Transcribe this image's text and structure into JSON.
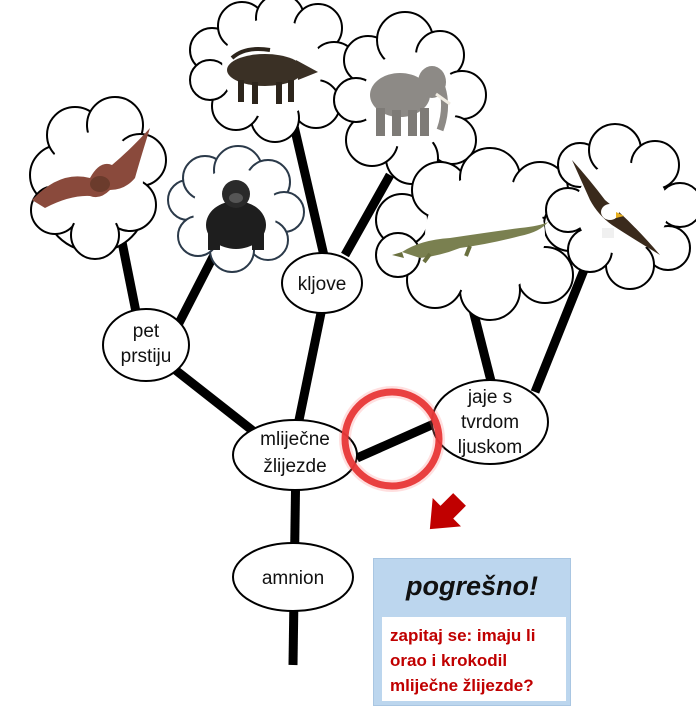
{
  "nodes": {
    "amnion": "amnion",
    "mammary_line1": "mliječne",
    "mammary_line2": "žlijezde",
    "five_fingers_line1": "pet",
    "five_fingers_line2": "prstiju",
    "tusks": "kljove",
    "hard_egg_line1": "jaje s",
    "hard_egg_line2": "tvrdom",
    "hard_egg_line3": "ljuskom"
  },
  "animals": [
    "bat-icon",
    "gorilla-icon",
    "boar-icon",
    "elephant-icon",
    "crocodile-icon",
    "eagle-icon"
  ],
  "feedback": {
    "title": "pogrešno!",
    "message_line1": "zapitaj se: imaju li",
    "message_line2": "orao i krokodil",
    "message_line3": "mliječne žlijezde?"
  },
  "colors": {
    "highlight_circle": "#e02020",
    "arrow": "#c00000",
    "feedback_header": "#bcd6ee",
    "feedback_text": "#c00000"
  }
}
